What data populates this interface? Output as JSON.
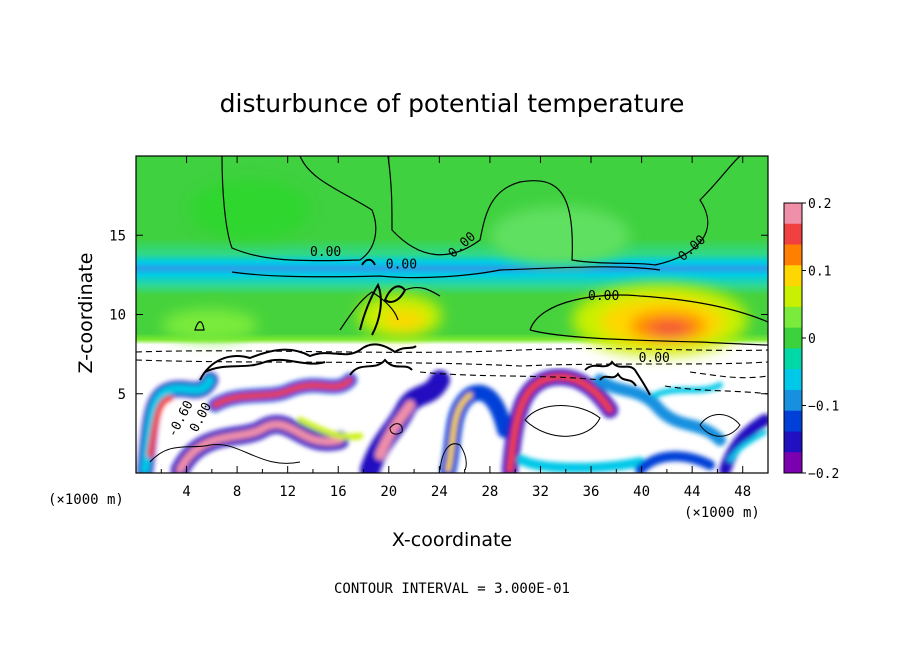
{
  "chart_data": {
    "type": "heatmap",
    "title": "disturbunce of potential temperature",
    "xlabel": "X-coordinate",
    "ylabel": "Z-coordinate",
    "x_unit": "(×1000 m)",
    "x_ticks": [
      "4",
      "8",
      "12",
      "16",
      "20",
      "24",
      "28",
      "32",
      "36",
      "40",
      "44",
      "48"
    ],
    "y_ticks": [
      "5",
      "10",
      "15"
    ],
    "xlim": [
      0,
      50
    ],
    "ylim": [
      0,
      20
    ],
    "colorbar": {
      "range": [
        -0.2,
        0.2
      ],
      "tick_labels": [
        "0.2",
        "0.1",
        "0",
        "−0.1",
        "−0.2"
      ],
      "colors": [
        "#f08fa8",
        "#f04040",
        "#ff8000",
        "#ffd700",
        "#c8f000",
        "#7aeb3a",
        "#3cd23c",
        "#00d8a8",
        "#00c8e8",
        "#1890e0",
        "#0040d8",
        "#2010c0",
        "#7a00b0"
      ]
    },
    "contour_interval_text": "CONTOUR INTERVAL = 3.000E-01",
    "contour_labels": [
      "0.00",
      "0.00",
      "0.00",
      "0.00",
      "0.00",
      "0.00",
      "-0.60",
      "0.00"
    ]
  }
}
